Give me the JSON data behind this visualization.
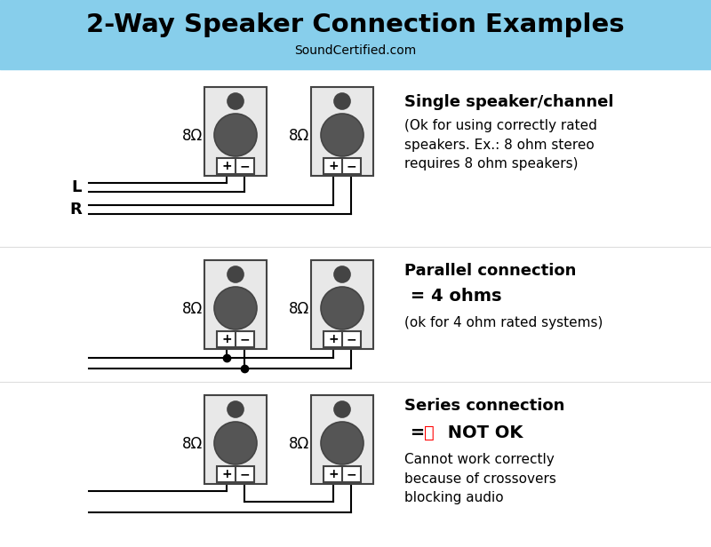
{
  "title": "2-Way Speaker Connection Examples",
  "subtitle": "SoundCertified.com",
  "header_bg": "#87CEEB",
  "body_bg": "#FFFFFF",
  "sec1_title": "Single speaker/channel",
  "sec1_body": "(Ok for using correctly rated\nspeakers. Ex.: 8 ohm stereo\nrequires 8 ohm speakers)",
  "sec2_title": "Parallel connection",
  "sec2_sub": " = 4 ohms",
  "sec2_body": "(ok for 4 ohm rated systems)",
  "sec3_title": "Series connection",
  "sec3_sub_prefix": " = ",
  "sec3_sub_x": "❌",
  "sec3_sub_suffix": " NOT OK",
  "sec3_body": "Cannot work correctly\nbecause of crossovers\nblocking audio",
  "ohm_label": "8Ω"
}
